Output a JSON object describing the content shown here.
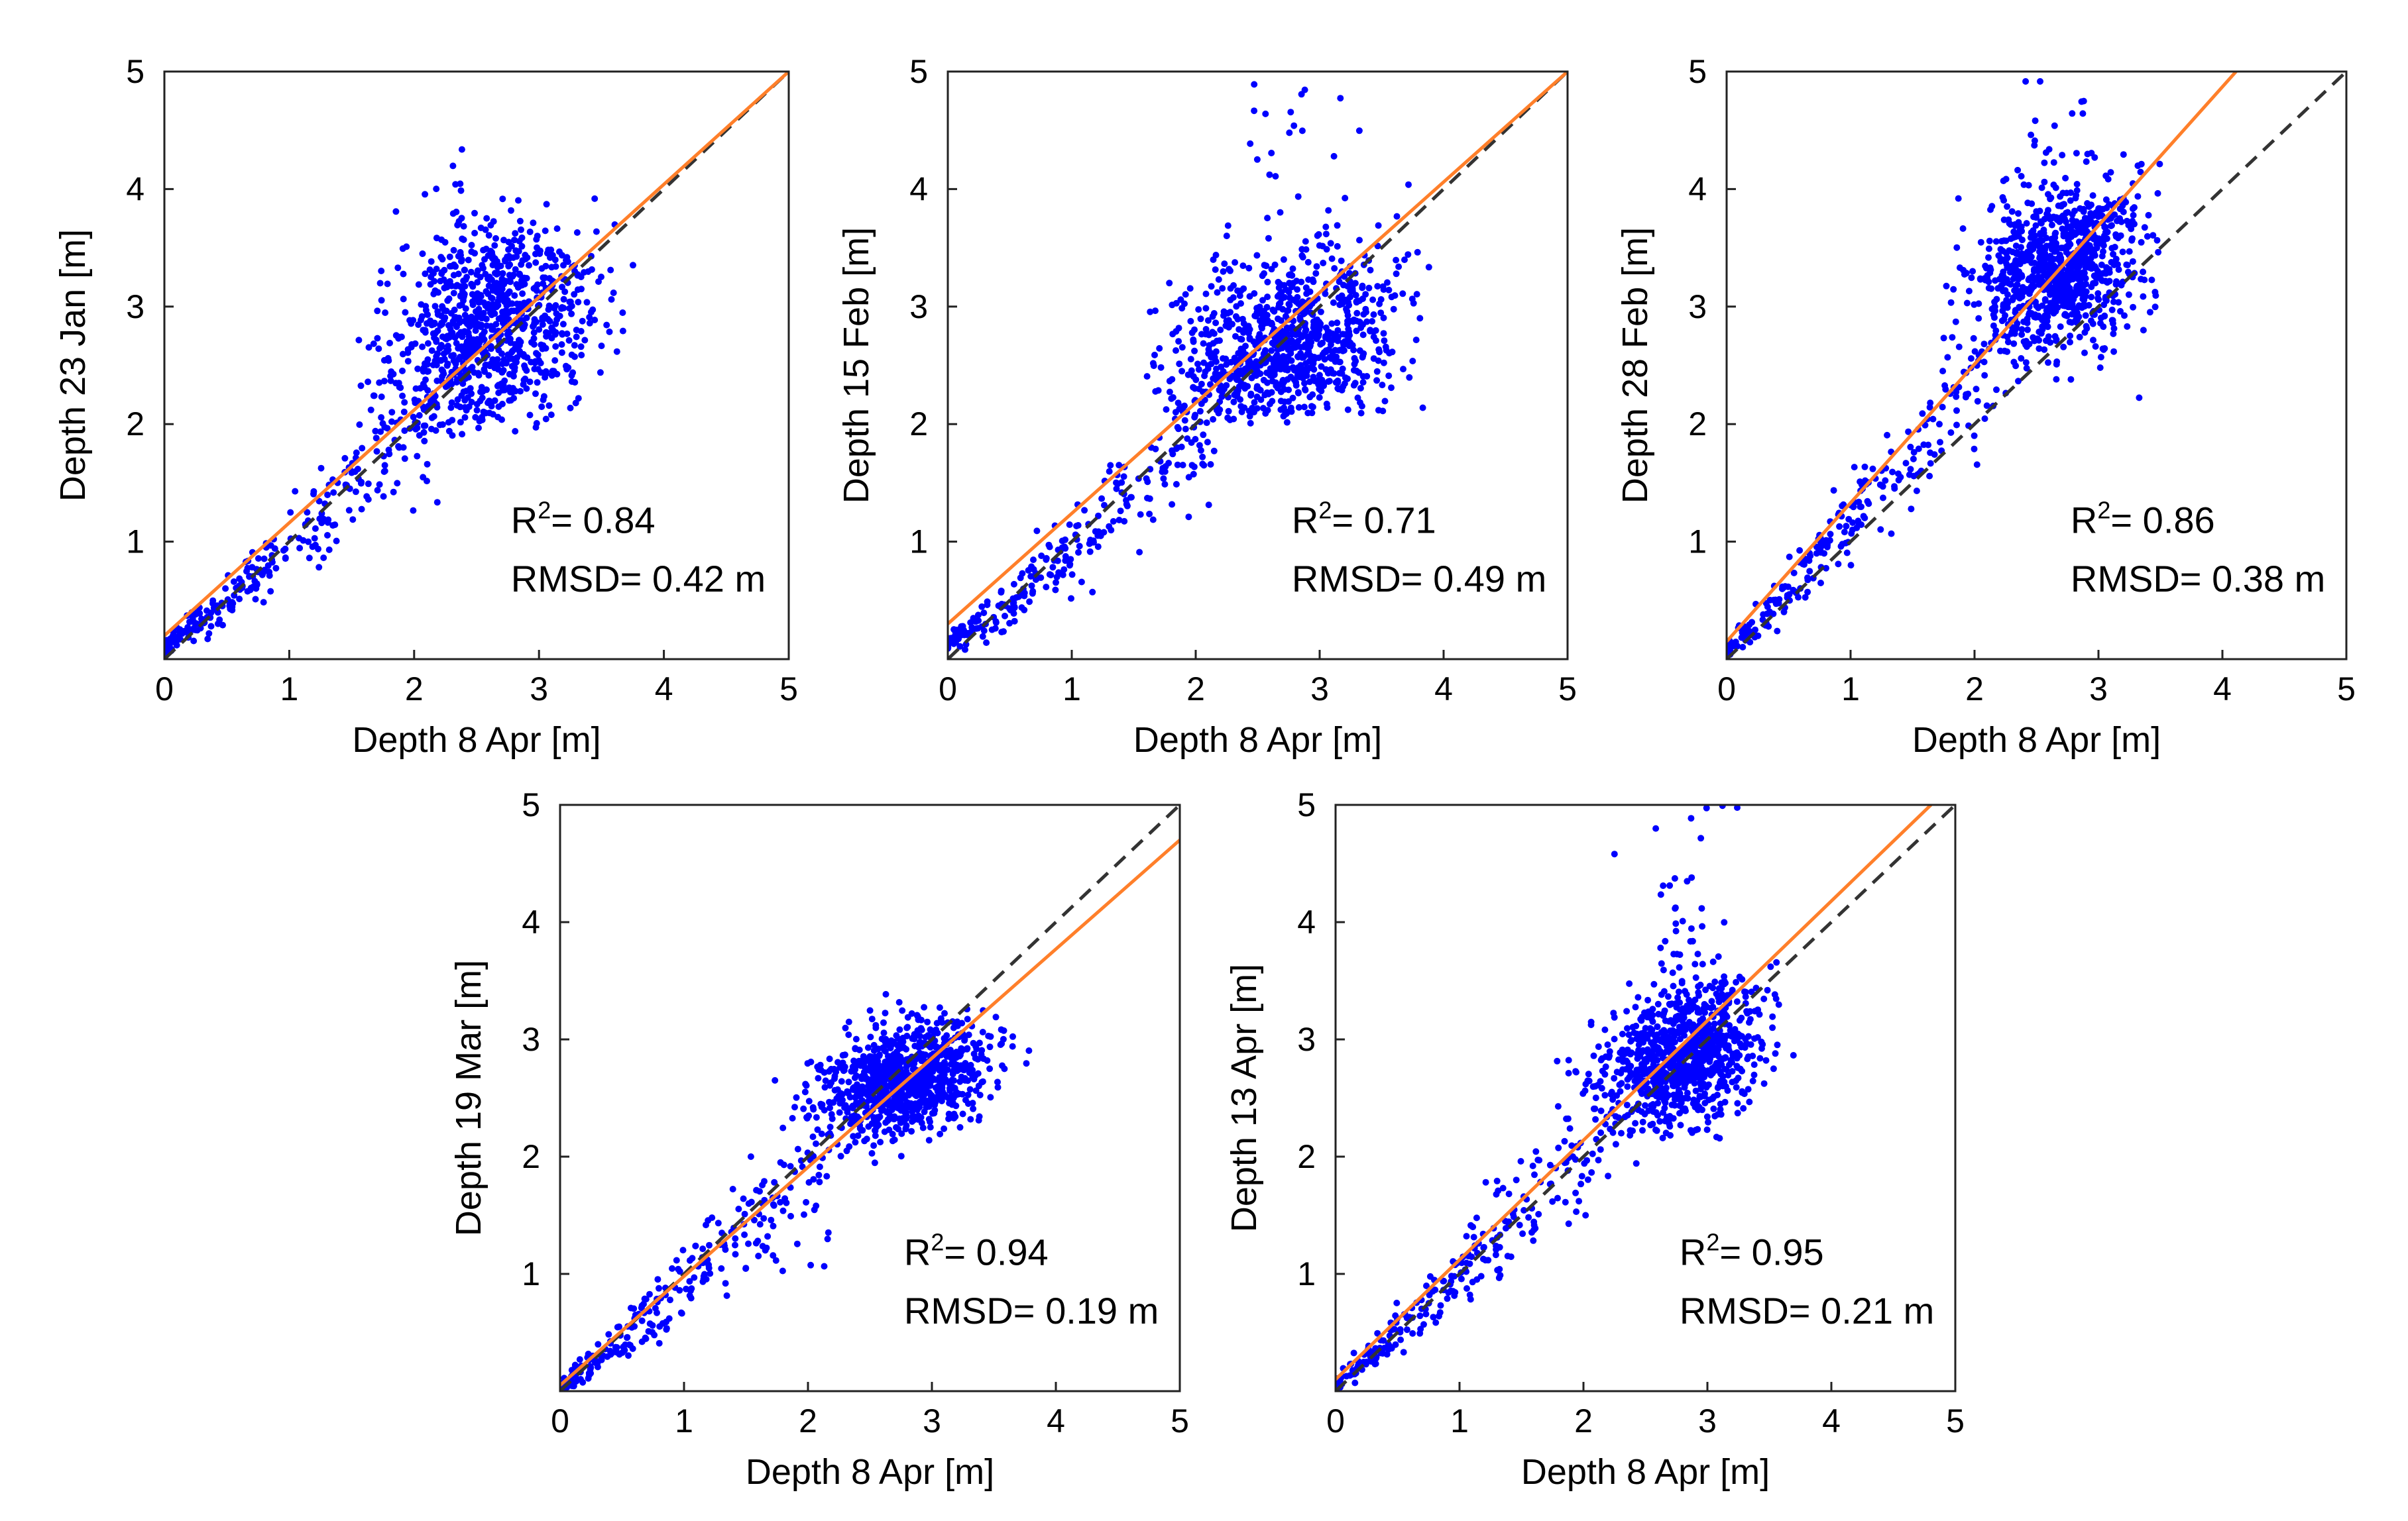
{
  "figure": {
    "colors": {
      "points": "#0000ff",
      "fit_line": "#ff7f2a",
      "one_to_one_line": "#333333",
      "axes": "#222222"
    }
  },
  "chart_data": [
    {
      "type": "scatter",
      "xlabel": "Depth 8 Apr [m]",
      "ylabel": "Depth 23 Jan  [m]",
      "xlim": [
        0,
        5
      ],
      "ylim": [
        0,
        5
      ],
      "xticks": [
        0,
        1,
        2,
        3,
        4,
        5
      ],
      "yticks": [
        1,
        2,
        3,
        4,
        5
      ],
      "r2_label": "R",
      "r2_sup": "2",
      "r2_value": "= 0.84",
      "rmsd_text": "RMSD= 0.42 m",
      "fit_line": {
        "intercept": 0.2,
        "slope": 0.96
      },
      "one_to_one": true,
      "grid": false,
      "cluster": {
        "cx": 2.6,
        "cy": 2.8,
        "sx": 0.4,
        "sy": 0.45,
        "x_min": 1.5,
        "x_max": 3.9,
        "y_min": 1.9,
        "y_max": 4.4
      }
    },
    {
      "type": "scatter",
      "xlabel": "Depth 8 Apr [m]",
      "ylabel": "Depth 15 Feb  [m]",
      "xlim": [
        0,
        5
      ],
      "ylim": [
        0,
        5
      ],
      "xticks": [
        0,
        1,
        2,
        3,
        4,
        5
      ],
      "yticks": [
        1,
        2,
        3,
        4,
        5
      ],
      "r2_label": "R",
      "r2_sup": "2",
      "r2_value": "= 0.71",
      "rmsd_text": "RMSD= 0.49 m",
      "fit_line": {
        "intercept": 0.3,
        "slope": 0.94
      },
      "one_to_one": true,
      "grid": false,
      "cluster": {
        "cx": 2.7,
        "cy": 2.65,
        "sx": 0.45,
        "sy": 0.35,
        "x_min": 1.6,
        "x_max": 3.9,
        "y_min": 2.0,
        "y_max": 5.0
      }
    },
    {
      "type": "scatter",
      "xlabel": "Depth 8 Apr [m]",
      "ylabel": "Depth 28 Feb  [m]",
      "xlim": [
        0,
        5
      ],
      "ylim": [
        0,
        5
      ],
      "xticks": [
        0,
        1,
        2,
        3,
        4,
        5
      ],
      "yticks": [
        1,
        2,
        3,
        4,
        5
      ],
      "r2_label": "R",
      "r2_sup": "2",
      "r2_value": "= 0.86",
      "rmsd_text": "RMSD= 0.38 m",
      "fit_line": {
        "intercept": 0.15,
        "slope": 1.18
      },
      "one_to_one": true,
      "grid": false,
      "cluster": {
        "cx": 2.7,
        "cy": 3.3,
        "sx": 0.35,
        "sy": 0.35,
        "x_min": 1.7,
        "x_max": 3.5,
        "y_min": 1.8,
        "y_max": 5.0
      }
    },
    {
      "type": "scatter",
      "xlabel": "Depth 8 Apr [m]",
      "ylabel": "Depth 19 Mar  [m]",
      "xlim": [
        0,
        5
      ],
      "ylim": [
        0,
        5
      ],
      "xticks": [
        0,
        1,
        2,
        3,
        4,
        5
      ],
      "yticks": [
        1,
        2,
        3,
        4,
        5
      ],
      "r2_label": "R",
      "r2_sup": "2",
      "r2_value": "= 0.94",
      "rmsd_text": "RMSD= 0.19 m",
      "fit_line": {
        "intercept": 0.05,
        "slope": 0.93
      },
      "one_to_one": true,
      "grid": false,
      "cluster": {
        "cx": 2.8,
        "cy": 2.65,
        "sx": 0.35,
        "sy": 0.22,
        "x_min": 1.6,
        "x_max": 3.8,
        "y_min": 1.9,
        "y_max": 3.4
      }
    },
    {
      "type": "scatter",
      "xlabel": "Depth 8 Apr [m]",
      "ylabel": "Depth 13 Apr  [m]",
      "xlim": [
        0,
        5
      ],
      "ylim": [
        0,
        5
      ],
      "xticks": [
        0,
        1,
        2,
        3,
        4,
        5
      ],
      "yticks": [
        1,
        2,
        3,
        4,
        5
      ],
      "r2_label": "R",
      "r2_sup": "2",
      "r2_value": "= 0.95",
      "rmsd_text": "RMSD= 0.21 m",
      "fit_line": {
        "intercept": 0.1,
        "slope": 1.02
      },
      "one_to_one": true,
      "grid": false,
      "cluster": {
        "cx": 2.8,
        "cy": 2.85,
        "sx": 0.32,
        "sy": 0.28,
        "x_min": 1.6,
        "x_max": 3.9,
        "y_min": 1.9,
        "y_max": 5.0
      }
    }
  ]
}
